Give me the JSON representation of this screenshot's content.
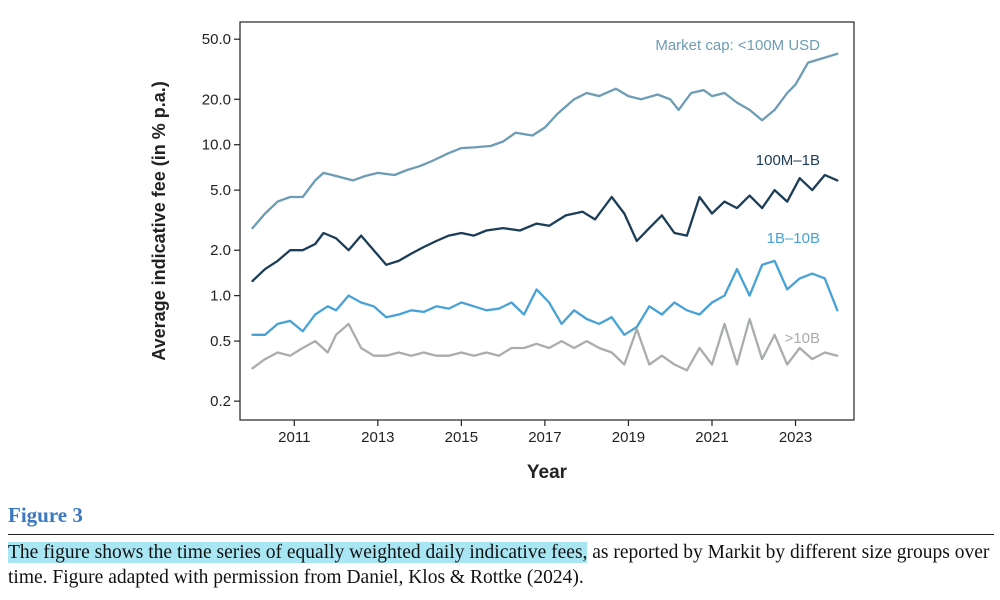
{
  "chart_data": {
    "type": "line",
    "title": "",
    "xlabel": "Year",
    "ylabel": "Average indicative fee (in % p.a.)",
    "yscale": "log",
    "xlim": [
      2009.7,
      2024.4
    ],
    "ylim": [
      0.15,
      65
    ],
    "yticks": [
      0.2,
      0.5,
      1.0,
      2.0,
      5.0,
      10.0,
      20.0,
      50.0
    ],
    "ytick_labels": [
      "0.2",
      "0.5",
      "1.0",
      "2.0",
      "5.0",
      "10.0",
      "20.0",
      "50.0"
    ],
    "xticks": [
      2011,
      2013,
      2015,
      2017,
      2019,
      2021,
      2023
    ],
    "xtick_labels": [
      "2011",
      "2013",
      "2015",
      "2017",
      "2019",
      "2021",
      "2023"
    ],
    "grid": false,
    "legend": "inline labels at right",
    "series": [
      {
        "name": "Market cap: <100M USD",
        "color": "#6d9cb5",
        "x": [
          2010.0,
          2010.3,
          2010.6,
          2010.9,
          2011.2,
          2011.5,
          2011.7,
          2012.0,
          2012.4,
          2012.7,
          2013.0,
          2013.4,
          2013.7,
          2014.0,
          2014.3,
          2014.7,
          2015.0,
          2015.3,
          2015.7,
          2016.0,
          2016.3,
          2016.7,
          2017.0,
          2017.3,
          2017.7,
          2018.0,
          2018.3,
          2018.7,
          2019.0,
          2019.3,
          2019.7,
          2020.0,
          2020.2,
          2020.5,
          2020.8,
          2021.0,
          2021.3,
          2021.6,
          2021.9,
          2022.2,
          2022.5,
          2022.8,
          2023.0,
          2023.3,
          2023.6,
          2024.0
        ],
        "values": [
          2.8,
          3.5,
          4.2,
          4.5,
          4.5,
          5.8,
          6.5,
          6.2,
          5.8,
          6.2,
          6.5,
          6.3,
          6.8,
          7.2,
          7.8,
          8.8,
          9.5,
          9.6,
          9.8,
          10.5,
          12.0,
          11.5,
          13.0,
          16.0,
          20.0,
          22.0,
          21.0,
          23.5,
          21.0,
          20.0,
          21.5,
          20.0,
          17.0,
          22.0,
          23.0,
          21.0,
          22.0,
          19.0,
          17.0,
          14.5,
          17.0,
          22.0,
          25.0,
          35.0,
          37.0,
          40.0
        ]
      },
      {
        "name": "100M–1B",
        "color": "#1c3d57",
        "x": [
          2010.0,
          2010.3,
          2010.6,
          2010.9,
          2011.2,
          2011.5,
          2011.7,
          2012.0,
          2012.3,
          2012.6,
          2012.9,
          2013.2,
          2013.5,
          2013.8,
          2014.1,
          2014.4,
          2014.7,
          2015.0,
          2015.3,
          2015.6,
          2016.0,
          2016.4,
          2016.8,
          2017.1,
          2017.5,
          2017.9,
          2018.2,
          2018.6,
          2018.9,
          2019.2,
          2019.5,
          2019.8,
          2020.1,
          2020.4,
          2020.7,
          2021.0,
          2021.3,
          2021.6,
          2021.9,
          2022.2,
          2022.5,
          2022.8,
          2023.1,
          2023.4,
          2023.7,
          2024.0
        ],
        "values": [
          1.25,
          1.5,
          1.7,
          2.0,
          2.0,
          2.2,
          2.6,
          2.4,
          2.0,
          2.5,
          2.0,
          1.6,
          1.7,
          1.9,
          2.1,
          2.3,
          2.5,
          2.6,
          2.5,
          2.7,
          2.8,
          2.7,
          3.0,
          2.9,
          3.4,
          3.6,
          3.2,
          4.5,
          3.5,
          2.3,
          2.8,
          3.4,
          2.6,
          2.5,
          4.5,
          3.5,
          4.2,
          3.8,
          4.6,
          3.8,
          5.0,
          4.2,
          6.0,
          5.0,
          6.3,
          5.8
        ]
      },
      {
        "name": "1B–10B",
        "color": "#48a2d6",
        "x": [
          2010.0,
          2010.3,
          2010.6,
          2010.9,
          2011.2,
          2011.5,
          2011.8,
          2012.0,
          2012.3,
          2012.6,
          2012.9,
          2013.2,
          2013.5,
          2013.8,
          2014.1,
          2014.4,
          2014.7,
          2015.0,
          2015.3,
          2015.6,
          2015.9,
          2016.2,
          2016.5,
          2016.8,
          2017.1,
          2017.4,
          2017.7,
          2018.0,
          2018.3,
          2018.6,
          2018.9,
          2019.2,
          2019.5,
          2019.8,
          2020.1,
          2020.4,
          2020.7,
          2021.0,
          2021.3,
          2021.6,
          2021.9,
          2022.2,
          2022.5,
          2022.8,
          2023.1,
          2023.4,
          2023.7,
          2024.0
        ],
        "values": [
          0.55,
          0.55,
          0.65,
          0.68,
          0.58,
          0.75,
          0.85,
          0.8,
          1.0,
          0.9,
          0.85,
          0.72,
          0.75,
          0.8,
          0.78,
          0.85,
          0.82,
          0.9,
          0.85,
          0.8,
          0.82,
          0.9,
          0.75,
          1.1,
          0.9,
          0.65,
          0.8,
          0.7,
          0.65,
          0.72,
          0.55,
          0.62,
          0.85,
          0.75,
          0.9,
          0.8,
          0.75,
          0.9,
          1.0,
          1.5,
          1.0,
          1.6,
          1.7,
          1.1,
          1.3,
          1.4,
          1.3,
          0.8
        ]
      },
      {
        "name": ">10B",
        "color": "#a9adae",
        "x": [
          2010.0,
          2010.3,
          2010.6,
          2010.9,
          2011.2,
          2011.5,
          2011.8,
          2012.0,
          2012.3,
          2012.6,
          2012.9,
          2013.2,
          2013.5,
          2013.8,
          2014.1,
          2014.4,
          2014.7,
          2015.0,
          2015.3,
          2015.6,
          2015.9,
          2016.2,
          2016.5,
          2016.8,
          2017.1,
          2017.4,
          2017.7,
          2018.0,
          2018.3,
          2018.6,
          2018.9,
          2019.2,
          2019.5,
          2019.8,
          2020.1,
          2020.4,
          2020.7,
          2021.0,
          2021.3,
          2021.6,
          2021.9,
          2022.2,
          2022.5,
          2022.8,
          2023.1,
          2023.4,
          2023.7,
          2024.0
        ],
        "values": [
          0.33,
          0.38,
          0.42,
          0.4,
          0.45,
          0.5,
          0.42,
          0.55,
          0.65,
          0.45,
          0.4,
          0.4,
          0.42,
          0.4,
          0.42,
          0.4,
          0.4,
          0.42,
          0.4,
          0.42,
          0.4,
          0.45,
          0.45,
          0.48,
          0.45,
          0.5,
          0.45,
          0.5,
          0.45,
          0.42,
          0.35,
          0.6,
          0.35,
          0.4,
          0.35,
          0.32,
          0.45,
          0.35,
          0.65,
          0.35,
          0.7,
          0.38,
          0.55,
          0.35,
          0.45,
          0.38,
          0.42,
          0.4
        ]
      }
    ]
  },
  "figure_label": "Figure 3",
  "caption": {
    "highlighted": "The figure shows the time series of equally weighted daily indicative fees,",
    "rest": " as reported by Markit by different size groups over time. Figure adapted with permission from Daniel, Klos & Rottke (2024)."
  }
}
